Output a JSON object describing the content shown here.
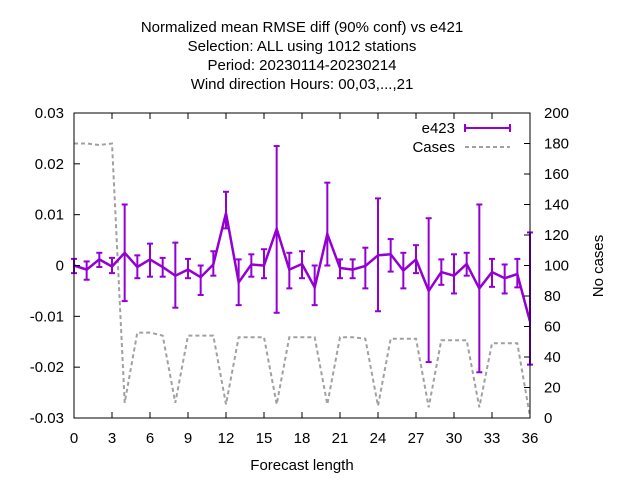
{
  "chart_data": {
    "type": "line",
    "title_lines": [
      "Normalized mean RMSE diff (90% conf) vs e421",
      "Selection: ALL using  1012 stations",
      "Period: 20230114-20230214",
      "Wind direction   Hours:  00,03,...,21"
    ],
    "xlabel": "Forecast length",
    "ylabel": "",
    "y2label": "No cases",
    "xlim": [
      0,
      36
    ],
    "ylim": [
      -0.03,
      0.03
    ],
    "y2lim": [
      0,
      200
    ],
    "x_ticks": [
      "0",
      "3",
      "6",
      "9",
      "12",
      "15",
      "18",
      "21",
      "24",
      "27",
      "30",
      "33",
      "36"
    ],
    "y_ticks": [
      "0.03",
      "0.02",
      "0.01",
      "0",
      "-0.01",
      "-0.02",
      "-0.03"
    ],
    "y2_ticks": [
      "200",
      "180",
      "160",
      "140",
      "120",
      "100",
      "80",
      "60",
      "40",
      "20",
      "0"
    ],
    "grid": false,
    "legend_position": "top-right",
    "colors": {
      "e423": "#9400d3",
      "cases": "#a0a0a0"
    },
    "series": [
      {
        "name": "e423",
        "axis": "left",
        "style": "errorbars",
        "x": [
          0,
          1,
          2,
          3,
          4,
          5,
          6,
          7,
          8,
          9,
          10,
          11,
          12,
          13,
          14,
          15,
          16,
          17,
          18,
          19,
          20,
          21,
          22,
          23,
          24,
          25,
          26,
          27,
          28,
          29,
          30,
          31,
          32,
          33,
          34,
          35,
          36
        ],
        "y": [
          0.0,
          -0.0008,
          0.0012,
          -0.0002,
          0.0025,
          -0.0003,
          0.0012,
          -0.0003,
          -0.002,
          -0.0008,
          -0.0023,
          0.0002,
          0.0103,
          -0.0033,
          0.0002,
          0.0,
          0.0072,
          -0.0008,
          0.0003,
          -0.0043,
          0.0062,
          -0.0005,
          -0.0008,
          -0.0001,
          0.002,
          0.0022,
          -0.001,
          0.0012,
          -0.005,
          -0.0013,
          -0.002,
          0.0003,
          -0.0045,
          -0.0013,
          -0.0025,
          -0.0017,
          -0.011
        ],
        "low": [
          -0.0015,
          -0.0028,
          -0.0003,
          -0.0015,
          -0.007,
          -0.0025,
          -0.0022,
          -0.0022,
          -0.0083,
          -0.0025,
          -0.0058,
          -0.002,
          0.0073,
          -0.0078,
          -0.0022,
          -0.0025,
          -0.0093,
          -0.0045,
          -0.0025,
          -0.0078,
          0.0,
          -0.0025,
          -0.0025,
          -0.0045,
          -0.009,
          -0.0012,
          -0.0045,
          -0.0015,
          -0.019,
          -0.0038,
          -0.0055,
          -0.002,
          -0.021,
          -0.0042,
          -0.0055,
          -0.0043,
          -0.0195
        ],
        "high": [
          0.0013,
          0.0008,
          0.0025,
          0.0015,
          0.012,
          0.002,
          0.0043,
          0.0015,
          0.0045,
          0.0013,
          0.0,
          0.0028,
          0.0145,
          0.0012,
          0.0022,
          0.0032,
          0.0235,
          0.0025,
          0.0028,
          0.0,
          0.0163,
          0.0012,
          0.0012,
          0.0035,
          0.0132,
          0.0052,
          0.0025,
          0.004,
          0.0093,
          0.0012,
          0.0022,
          0.0025,
          0.012,
          0.0013,
          0.0002,
          0.0013,
          0.0065
        ]
      },
      {
        "name": "Cases",
        "axis": "right",
        "style": "dashed",
        "x": [
          0,
          1,
          2,
          3,
          4,
          5,
          6,
          7,
          8,
          9,
          10,
          11,
          12,
          13,
          14,
          15,
          16,
          17,
          18,
          19,
          20,
          21,
          22,
          23,
          24,
          25,
          26,
          27,
          28,
          29,
          30,
          31,
          32,
          33,
          34,
          35,
          36
        ],
        "y": [
          180,
          180,
          179,
          180,
          10,
          56,
          56,
          54,
          10,
          54,
          54,
          54,
          9,
          53,
          53,
          53,
          9,
          53,
          53,
          53,
          9,
          53,
          53,
          52,
          8,
          52,
          52,
          52,
          7,
          51,
          51,
          51,
          7,
          49,
          49,
          49,
          1
        ]
      }
    ]
  }
}
